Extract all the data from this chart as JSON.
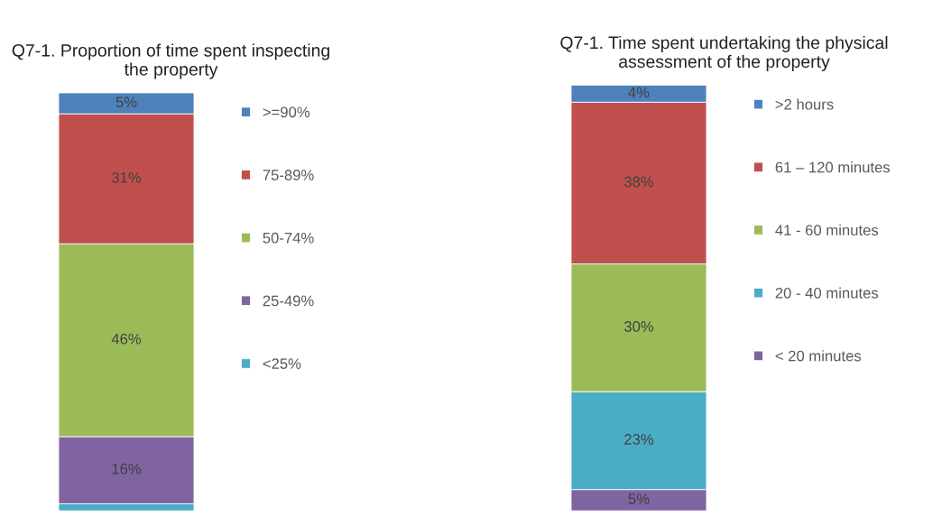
{
  "chart_data": [
    {
      "type": "bar",
      "stacked": true,
      "title": "Q7-1. Proportion of time spent inspecting\nthe property",
      "categories": [
        null
      ],
      "legend": "right",
      "series": [
        {
          "name": "<25%",
          "color": "#4bacc6",
          "values": [
            1.7
          ],
          "value_labels": [
            null
          ]
        },
        {
          "name": "25-49%",
          "color": "#8064a2",
          "values": [
            16
          ],
          "value_labels": [
            "16%"
          ]
        },
        {
          "name": "50-74%",
          "color": "#9bbb59",
          "values": [
            46
          ],
          "value_labels": [
            "46%"
          ]
        },
        {
          "name": "75-89%",
          "color": "#c0504d",
          "values": [
            31
          ],
          "value_labels": [
            "31%"
          ]
        },
        {
          "name": ">=90%",
          "color": "#4f81bd",
          "values": [
            5
          ],
          "value_labels": [
            "5%"
          ]
        }
      ]
    },
    {
      "type": "bar",
      "stacked": true,
      "title": "Q7-1. Time spent undertaking the physical\nassessment of the property",
      "categories": [
        null
      ],
      "legend": "right",
      "series": [
        {
          "name": "< 20 minutes",
          "color": "#8064a2",
          "values": [
            5
          ],
          "value_labels": [
            "5%"
          ]
        },
        {
          "name": "20 - 40 minutes",
          "color": "#4bacc6",
          "values": [
            23
          ],
          "value_labels": [
            "23%"
          ]
        },
        {
          "name": "41 - 60 minutes",
          "color": "#9bbb59",
          "values": [
            30
          ],
          "value_labels": [
            "30%"
          ]
        },
        {
          "name": "61 – 120 minutes",
          "color": "#c0504d",
          "values": [
            38
          ],
          "value_labels": [
            "38%"
          ]
        },
        {
          "name": ">2 hours",
          "color": "#4f81bd",
          "values": [
            4
          ],
          "value_labels": [
            "4%"
          ]
        }
      ]
    }
  ]
}
